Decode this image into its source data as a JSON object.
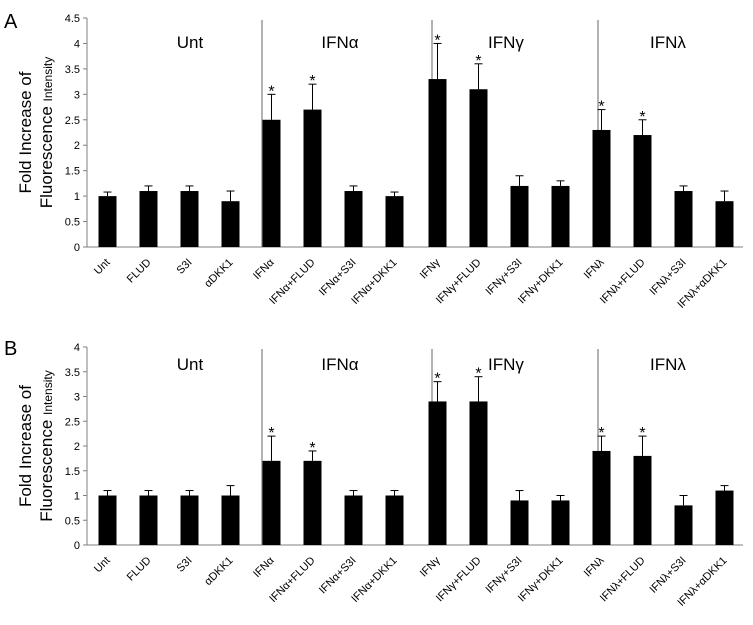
{
  "chart_data": [
    {
      "type": "bar",
      "panel_label": "A",
      "ylabel_main": "Fold Increase of",
      "ylabel_line2": "Fluorescence",
      "ylabel_small": "Intensity",
      "ylim": [
        0,
        4.5
      ],
      "yticks": [
        "0",
        "0.5",
        "1",
        "1.5",
        "2",
        "2.5",
        "3",
        "3.5",
        "4",
        "4.5"
      ],
      "group_labels": [
        "Unt",
        "IFNα",
        "IFNγ",
        "IFNλ"
      ],
      "categories": [
        "Unt",
        "FLUD",
        "S3I",
        "αDKK1",
        "IFNα",
        "IFNα+FLUD",
        "IFNα+S3I",
        "IFNα+DKK1",
        "IFNγ",
        "IFNγ+FLUD",
        "IFNγ+S3I",
        "IFNγ+DKK1",
        "IFNλ",
        "IFNλ+FLUD",
        "IFNλ+S3I",
        "IFNλ+αDKK1"
      ],
      "values": [
        1.0,
        1.1,
        1.1,
        0.9,
        2.5,
        2.7,
        1.1,
        1.0,
        3.3,
        3.1,
        1.2,
        1.2,
        2.3,
        2.2,
        1.1,
        0.9
      ],
      "errors": [
        0.08,
        0.1,
        0.1,
        0.2,
        0.5,
        0.5,
        0.1,
        0.08,
        0.7,
        0.5,
        0.2,
        0.1,
        0.4,
        0.3,
        0.1,
        0.2
      ],
      "significant": [
        false,
        false,
        false,
        false,
        true,
        true,
        false,
        false,
        true,
        true,
        false,
        false,
        true,
        true,
        false,
        false
      ],
      "star_symbol": "*"
    },
    {
      "type": "bar",
      "panel_label": "B",
      "ylabel_main": "Fold Increase of",
      "ylabel_line2": "Fluorescence",
      "ylabel_small": "Intensity",
      "ylim": [
        0,
        4
      ],
      "yticks": [
        "0",
        "0.5",
        "1",
        "1.5",
        "2",
        "2.5",
        "3",
        "3.5",
        "4"
      ],
      "group_labels": [
        "Unt",
        "IFNα",
        "IFNγ",
        "IFNλ"
      ],
      "categories": [
        "Unt",
        "FLUD",
        "S3I",
        "αDKK1",
        "IFNα",
        "IFNα+FLUD",
        "IFNα+S3I",
        "IFNα+DKK1",
        "IFNγ",
        "IFNγ+FLUD",
        "IFNγ+S3I",
        "IFNγ+DKK1",
        "IFNλ",
        "IFNλ+FLUD",
        "IFNλ+S3I",
        "IFNλ+αDKK1"
      ],
      "values": [
        1.0,
        1.0,
        1.0,
        1.0,
        1.7,
        1.7,
        1.0,
        1.0,
        2.9,
        2.9,
        0.9,
        0.9,
        1.9,
        1.8,
        0.8,
        1.1
      ],
      "errors": [
        0.1,
        0.1,
        0.1,
        0.2,
        0.5,
        0.2,
        0.1,
        0.1,
        0.4,
        0.5,
        0.2,
        0.1,
        0.3,
        0.4,
        0.2,
        0.1
      ],
      "significant": [
        false,
        false,
        false,
        false,
        true,
        true,
        false,
        false,
        true,
        true,
        false,
        false,
        true,
        true,
        false,
        false
      ],
      "star_symbol": "*"
    }
  ]
}
